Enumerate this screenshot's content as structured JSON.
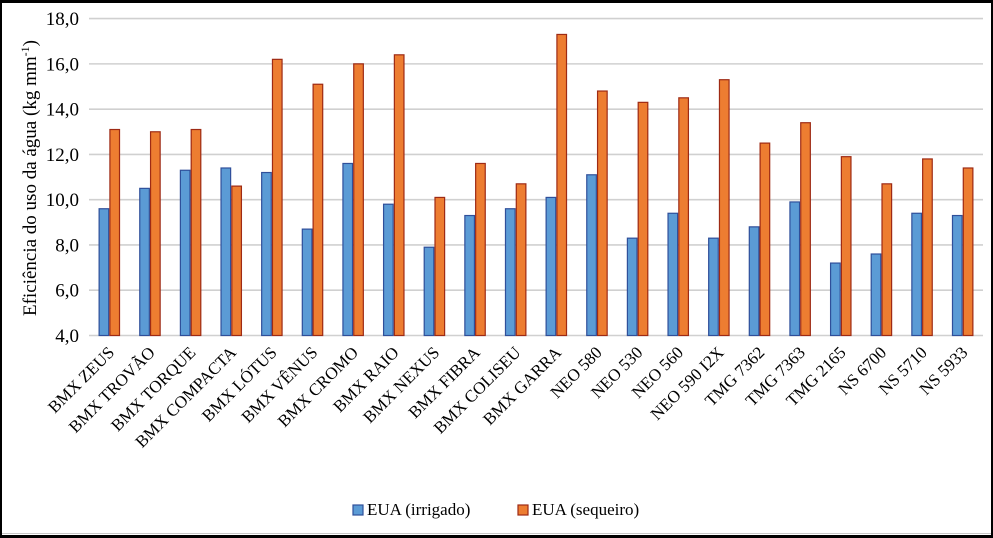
{
  "chart_data": {
    "type": "bar",
    "title": "",
    "xlabel": "",
    "ylabel": "Eficiência do uso da água (kg mm",
    "ylabel_superscript": "-1",
    "ylabel_suffix": ")",
    "ylim": [
      4.0,
      18.0
    ],
    "yticks": [
      4.0,
      6.0,
      8.0,
      10.0,
      12.0,
      14.0,
      16.0,
      18.0
    ],
    "ytick_labels": [
      "4,0",
      "6,0",
      "8,0",
      "10,0",
      "12,0",
      "14,0",
      "16,0",
      "18,0"
    ],
    "grid": true,
    "legend_position": "bottom-center",
    "categories": [
      "BMX ZEUS",
      "BMX TROVÃO",
      "BMX TORQUE",
      "BMX COMPACTA",
      "BMX LÓTUS",
      "BMX VÊNUS",
      "BMX CROMO",
      "BMX RAIO",
      "BMX NEXUS",
      "BMX FIBRA",
      "BMX COLISEU",
      "BMX GARRA",
      "NEO 580",
      "NEO 530",
      "NEO 560",
      "NEO 590 I2X",
      "TMG 7362",
      "TMG 7363",
      "TMG 2165",
      "NS 6700",
      "NS 5710",
      "NS 5933"
    ],
    "series": [
      {
        "name": "EUA (irrigado)",
        "color": "#5b9bd5",
        "border": "#2f4f9a",
        "values": [
          9.6,
          10.5,
          11.3,
          11.4,
          11.2,
          8.7,
          11.6,
          9.8,
          7.9,
          9.3,
          9.6,
          10.1,
          11.1,
          8.3,
          9.4,
          8.3,
          8.8,
          9.9,
          7.2,
          7.6,
          9.4,
          9.3
        ]
      },
      {
        "name": "EUA (sequeiro)",
        "color": "#ed7d31",
        "border": "#9e2a14",
        "values": [
          13.1,
          13.0,
          13.1,
          10.6,
          16.2,
          15.1,
          16.0,
          16.4,
          10.1,
          11.6,
          10.7,
          17.3,
          14.8,
          14.3,
          14.5,
          15.3,
          12.5,
          13.4,
          11.9,
          10.7,
          11.8,
          11.4
        ]
      }
    ]
  },
  "colors": {
    "grid": "#d0d0d0",
    "frame": "#000000"
  }
}
